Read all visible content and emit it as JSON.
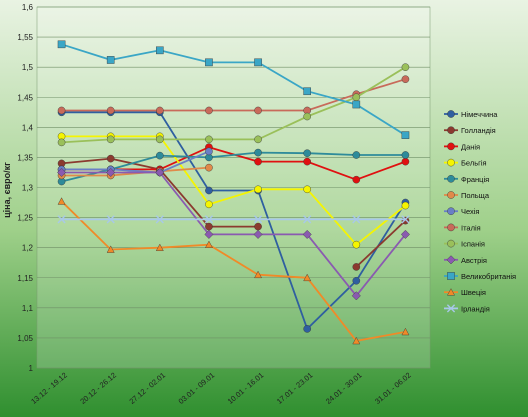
{
  "chart_data": {
    "type": "line",
    "title": "",
    "xlabel": "",
    "ylabel": "ціна, євро/кг",
    "ylim": [
      1,
      1.6
    ],
    "yticks": [
      "1",
      "1,05",
      "1,1",
      "1,15",
      "1,2",
      "1,25",
      "1,3",
      "1,35",
      "1,4",
      "1,45",
      "1,5",
      "1,55",
      "1,6"
    ],
    "grid": true,
    "legend": "right",
    "categories": [
      "13.12 - 19.12",
      "20.12 - 26.12",
      "27.12 - 02.01",
      "03.01 - 09.01",
      "10.01 - 16.01",
      "17.01 - 23.01",
      "24.01 - 30.01",
      "31.01 - 06.02"
    ],
    "series": [
      {
        "name": "Німеччина",
        "color": "#2f5fa0",
        "marker": "circle",
        "values": [
          1.425,
          1.425,
          1.425,
          1.295,
          1.295,
          1.065,
          1.145,
          1.275
        ]
      },
      {
        "name": "Голландія",
        "color": "#8b3a2f",
        "marker": "circle",
        "values": [
          1.34,
          1.348,
          1.33,
          1.235,
          1.235,
          null,
          1.168,
          1.245
        ]
      },
      {
        "name": "Данія",
        "color": "#e01010",
        "marker": "circle",
        "values": [
          1.33,
          1.33,
          1.33,
          1.367,
          1.343,
          1.343,
          1.313,
          1.343
        ]
      },
      {
        "name": "Бельгія",
        "color": "#f5f500",
        "marker": "circle",
        "values": [
          1.385,
          1.385,
          1.385,
          1.272,
          1.297,
          1.297,
          1.205,
          1.27
        ]
      },
      {
        "name": "Франція",
        "color": "#2e8b9a",
        "marker": "circle",
        "values": [
          1.31,
          1.33,
          1.353,
          1.35,
          1.358,
          1.357,
          1.354,
          1.354
        ]
      },
      {
        "name": "Польща",
        "color": "#e08a4a",
        "marker": "circle",
        "values": [
          1.32,
          1.32,
          1.327,
          1.333,
          null,
          null,
          null,
          null
        ]
      },
      {
        "name": "Чехія",
        "color": "#6a7fc6",
        "marker": "circle",
        "values": [
          1.33,
          1.33,
          1.325,
          1.36,
          null,
          null,
          null,
          null
        ]
      },
      {
        "name": "Італія",
        "color": "#c86a5a",
        "marker": "circle",
        "values": [
          1.428,
          1.428,
          1.428,
          1.428,
          1.428,
          1.428,
          1.455,
          1.48
        ]
      },
      {
        "name": "Іспанія",
        "color": "#9ac05a",
        "marker": "circle",
        "values": [
          1.375,
          1.38,
          1.38,
          1.38,
          1.38,
          1.418,
          1.45,
          1.5
        ]
      },
      {
        "name": "Австрія",
        "color": "#8a5ab0",
        "marker": "diamond",
        "values": [
          1.325,
          1.325,
          1.325,
          1.222,
          1.222,
          1.222,
          1.12,
          1.222
        ]
      },
      {
        "name": "Великобританія",
        "color": "#3aa6c6",
        "marker": "square",
        "values": [
          1.538,
          1.512,
          1.528,
          1.508,
          1.508,
          1.46,
          1.438,
          1.387
        ]
      },
      {
        "name": "Швеція",
        "color": "#f08a28",
        "marker": "triangle",
        "values": [
          1.277,
          1.197,
          1.2,
          1.205,
          1.155,
          1.15,
          1.045,
          1.06
        ]
      },
      {
        "name": "Ірландія",
        "color": "#a8c8ea",
        "marker": "cross",
        "values": [
          1.247,
          1.247,
          1.247,
          1.247,
          1.247,
          1.247,
          1.247,
          1.247
        ]
      }
    ]
  }
}
